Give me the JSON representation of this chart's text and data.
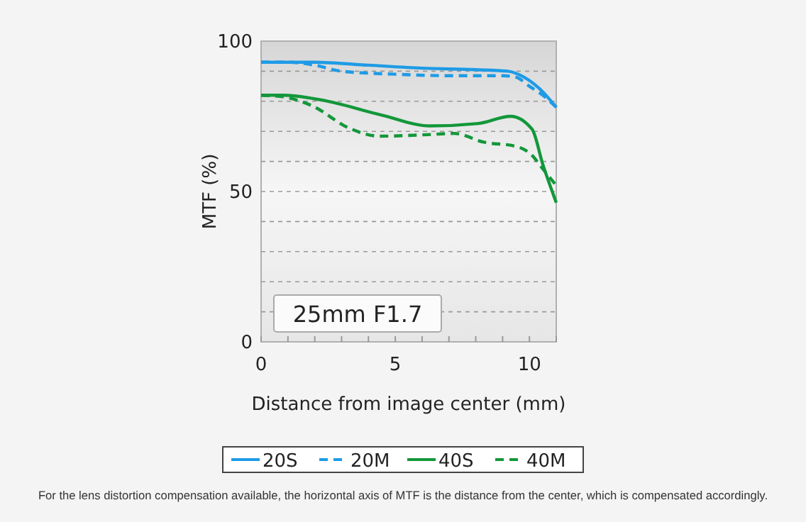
{
  "chart_data": {
    "type": "line",
    "xlabel": "Distance from image center (mm)",
    "ylabel": "MTF (%)",
    "xlim": [
      0,
      11
    ],
    "xticks": [
      0,
      {
        "value": 1,
        "label": null
      },
      {
        "value": 2,
        "label": null
      },
      {
        "value": 3,
        "label": null
      },
      {
        "value": 4,
        "label": null
      },
      5,
      {
        "value": 6,
        "label": null
      },
      {
        "value": 7,
        "label": null
      },
      {
        "value": 8,
        "label": null
      },
      {
        "value": 9,
        "label": null
      },
      10,
      {
        "value": 11,
        "label": null
      }
    ],
    "ylim": [
      0,
      100
    ],
    "yticks": [
      0,
      {
        "value": 10,
        "label": null
      },
      {
        "value": 20,
        "label": null
      },
      {
        "value": 30,
        "label": null
      },
      {
        "value": 40,
        "label": null
      },
      50,
      {
        "value": 60,
        "label": null
      },
      {
        "value": 70,
        "label": null
      },
      {
        "value": 80,
        "label": null
      },
      {
        "value": 90,
        "label": null
      },
      100
    ],
    "grid": "y",
    "legend": "bottom",
    "annotations": [
      "25mm F1.7",
      "For the lens distortion compensation available, the horizontal axis of MTF is the distance from the center, which is compensated accordingly."
    ],
    "series": [
      {
        "name": "20S",
        "color": "#1e9be6",
        "line_style": "solid",
        "x": [
          0,
          2,
          4,
          6,
          8,
          9.2,
          9.8,
          10.4,
          11
        ],
        "values": [
          93,
          93,
          92,
          91,
          90.5,
          90,
          88,
          84,
          78
        ]
      },
      {
        "name": "20M",
        "color": "#1e9be6",
        "line_style": "dashed",
        "x": [
          0,
          1,
          2,
          3,
          5,
          7,
          9,
          9.5,
          10,
          10.5,
          11
        ],
        "values": [
          93,
          93,
          92,
          90,
          89,
          88.5,
          88.5,
          88,
          85,
          82,
          78
        ]
      },
      {
        "name": "40S",
        "color": "#13973a",
        "line_style": "solid",
        "x": [
          0,
          0.8,
          2.2,
          4.5,
          6.3,
          8.1,
          9.3,
          10.1,
          10.5,
          11
        ],
        "values": [
          82,
          82,
          80.5,
          75.4,
          71.8,
          72.6,
          75,
          70.7,
          59,
          46.3
        ]
      },
      {
        "name": "40M",
        "color": "#13973a",
        "line_style": "dashed",
        "x": [
          0,
          0.8,
          1.9,
          3.3,
          4.4,
          6.2,
          7.2,
          8.3,
          9.5,
          10.1,
          10.5,
          11
        ],
        "values": [
          82,
          81.5,
          78.5,
          71,
          68.4,
          68.9,
          69.3,
          66.4,
          65,
          62,
          57.5,
          52
        ]
      }
    ]
  }
}
